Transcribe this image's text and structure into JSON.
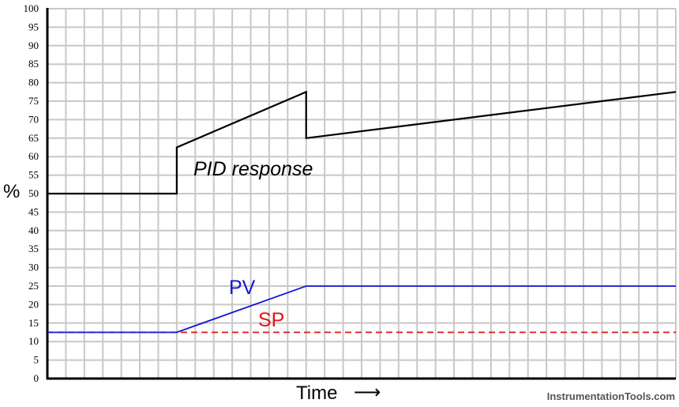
{
  "chart_data": {
    "type": "line",
    "ylabel": "%",
    "xlabel": "Time",
    "ylim": [
      0,
      100
    ],
    "yticks": [
      0,
      5,
      10,
      15,
      20,
      25,
      30,
      35,
      40,
      45,
      50,
      55,
      60,
      65,
      70,
      75,
      80,
      85,
      90,
      95,
      100
    ],
    "grid": true,
    "x_range": [
      0,
      34
    ],
    "series": [
      {
        "name": "PID response",
        "color": "#000000",
        "style": "solid",
        "points": [
          [
            0,
            50
          ],
          [
            7,
            50
          ],
          [
            7,
            62.5
          ],
          [
            14,
            77.5
          ],
          [
            14,
            65
          ],
          [
            34,
            77.5
          ]
        ]
      },
      {
        "name": "PV",
        "color": "#1515d8",
        "style": "solid",
        "points": [
          [
            0,
            12.5
          ],
          [
            7,
            12.5
          ],
          [
            14,
            25
          ],
          [
            34,
            25
          ]
        ]
      },
      {
        "name": "SP",
        "color": "#e01515",
        "style": "dashed",
        "points": [
          [
            0,
            12.5
          ],
          [
            34,
            12.5
          ]
        ]
      }
    ]
  },
  "labels": {
    "pid": "PID response",
    "pv": "PV",
    "sp": "SP",
    "time_arrow": "⟶"
  },
  "watermark": "InstrumentationTools.com"
}
